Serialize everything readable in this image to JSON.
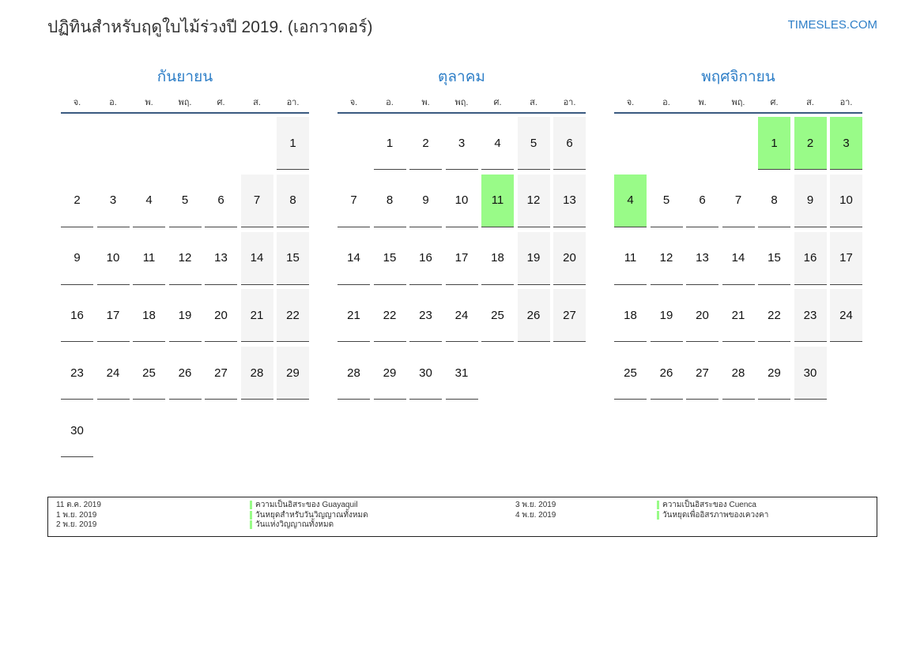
{
  "title": "ปฏิทินสำหรับฤดูใบไม้ร่วงปี 2019. (เอกวาดอร์)",
  "site": "TIMESLES.COM",
  "weekdays": [
    "จ.",
    "อ.",
    "พ.",
    "พฤ.",
    "ศ.",
    "ส.",
    "อา."
  ],
  "colors": {
    "accent": "#2d7ec7",
    "holiday": "#99fb88",
    "weekend": "#f4f4f4"
  },
  "months": [
    {
      "name": "กันยายน",
      "start_weekday": 6,
      "days": 30,
      "holidays": []
    },
    {
      "name": "ตุลาคม",
      "start_weekday": 1,
      "days": 31,
      "holidays": [
        11
      ]
    },
    {
      "name": "พฤศจิกายน",
      "start_weekday": 4,
      "days": 30,
      "holidays": [
        1,
        2,
        3,
        4
      ]
    }
  ],
  "legend": [
    {
      "date": "11 ต.ค. 2019",
      "name": "ความเป็นอิสระของ Guayaquil"
    },
    {
      "date": "1 พ.ย. 2019",
      "name": "วันหยุดสำหรับวันวิญญาณทั้งหมด"
    },
    {
      "date": "2 พ.ย. 2019",
      "name": "วันแห่งวิญญาณทั้งหมด"
    },
    {
      "date": "3 พ.ย. 2019",
      "name": "ความเป็นอิสระของ Cuenca"
    },
    {
      "date": "4 พ.ย. 2019",
      "name": "วันหยุดเพื่ออิสรภาพของเควงคา"
    }
  ]
}
